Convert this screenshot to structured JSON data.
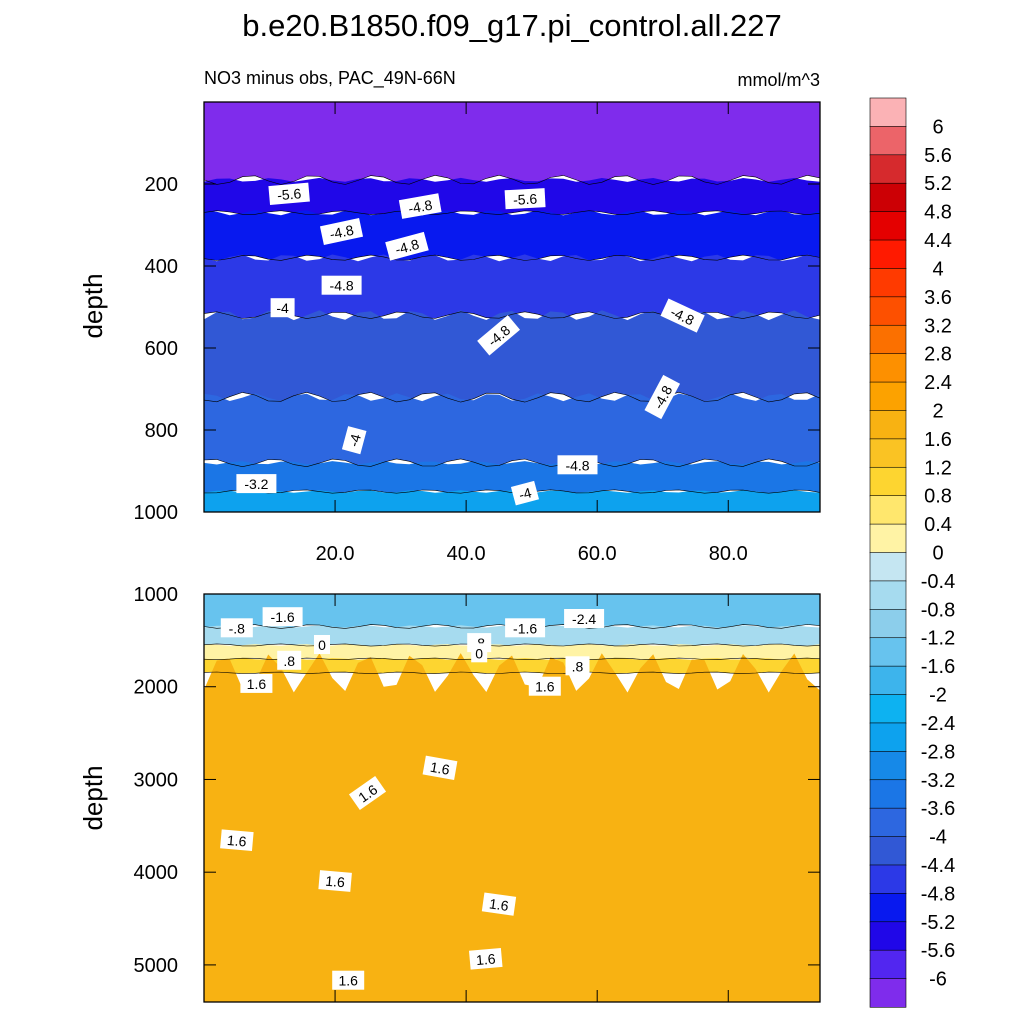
{
  "chart_data": [
    {
      "type": "contour",
      "panel": "upper",
      "title": "b.e20.B1850.f09_g17.pi_control.all.227",
      "left_string": "NO3 minus obs, PAC_49N-66N",
      "right_string": "mmol/m^3",
      "ylabel": "depth",
      "xlabel": "",
      "xlim": [
        0,
        94
      ],
      "ylim": [
        1000,
        0
      ],
      "x_ticks": [
        "20.0",
        "40.0",
        "60.0",
        "80.0"
      ],
      "x_tick_values": [
        20,
        40,
        60,
        80
      ],
      "y_ticks": [
        "200",
        "400",
        "600",
        "800",
        "1000"
      ],
      "y_tick_values": [
        200,
        400,
        600,
        800,
        1000
      ],
      "bands": [
        {
          "from": 0,
          "to": 190,
          "level": -6.2
        },
        {
          "from": 190,
          "to": 270,
          "level": -5.4
        },
        {
          "from": 270,
          "to": 380,
          "level": -5.0
        },
        {
          "from": 380,
          "to": 520,
          "level": -4.6
        },
        {
          "from": 520,
          "to": 720,
          "level": -4.2
        },
        {
          "from": 720,
          "to": 880,
          "level": -3.8
        },
        {
          "from": 880,
          "to": 950,
          "level": -3.4
        },
        {
          "from": 950,
          "to": 1000,
          "level": -2.6
        }
      ],
      "contour_labels": [
        {
          "x": 13,
          "y": 225,
          "text": "-5.6",
          "rot": -5
        },
        {
          "x": 33,
          "y": 255,
          "text": "-4.8",
          "rot": -10
        },
        {
          "x": 49,
          "y": 237,
          "text": "-5.6",
          "rot": -3
        },
        {
          "x": 21,
          "y": 317,
          "text": "-4.8",
          "rot": -12
        },
        {
          "x": 31,
          "y": 353,
          "text": "-4.8",
          "rot": -15
        },
        {
          "x": 21,
          "y": 448,
          "text": "-4.8",
          "rot": 0
        },
        {
          "x": 12,
          "y": 503,
          "text": "-4",
          "rot": 0
        },
        {
          "x": 73,
          "y": 522,
          "text": "-4.8",
          "rot": 25
        },
        {
          "x": 45,
          "y": 570,
          "text": "-4.8",
          "rot": -40
        },
        {
          "x": 70,
          "y": 720,
          "text": "-4.8",
          "rot": -62
        },
        {
          "x": 23,
          "y": 825,
          "text": "-4",
          "rot": -75
        },
        {
          "x": 57,
          "y": 886,
          "text": "-4.8",
          "rot": 0
        },
        {
          "x": 8,
          "y": 932,
          "text": "-3.2",
          "rot": 0
        },
        {
          "x": 49,
          "y": 955,
          "text": "-4",
          "rot": -15
        }
      ]
    },
    {
      "type": "contour",
      "panel": "lower",
      "ylabel": "depth",
      "xlim": [
        0,
        94
      ],
      "ylim": [
        5400,
        1000
      ],
      "y_ticks": [
        "1000",
        "2000",
        "3000",
        "4000",
        "5000"
      ],
      "y_tick_values": [
        1000,
        2000,
        3000,
        4000,
        5000
      ],
      "bands": [
        {
          "from": 1000,
          "to": 1350,
          "level": -1.4
        },
        {
          "from": 1350,
          "to": 1550,
          "level": -0.6
        },
        {
          "from": 1550,
          "to": 1700,
          "level": 0.2
        },
        {
          "from": 1700,
          "to": 1850,
          "level": 1.0
        },
        {
          "from": 1850,
          "to": 5400,
          "level": 1.8
        }
      ],
      "contour_labels": [
        {
          "x": 12,
          "y": 1250,
          "text": "-1.6",
          "rot": 0
        },
        {
          "x": 58,
          "y": 1270,
          "text": "-2.4",
          "rot": 0
        },
        {
          "x": 5,
          "y": 1370,
          "text": "-.8",
          "rot": 0
        },
        {
          "x": 49,
          "y": 1370,
          "text": "-1.6",
          "rot": 0
        },
        {
          "x": 18,
          "y": 1550,
          "text": "0",
          "rot": 0
        },
        {
          "x": 42,
          "y": 1530,
          "text": ".8",
          "rot": 0
        },
        {
          "x": 13,
          "y": 1720,
          "text": ".8",
          "rot": 0
        },
        {
          "x": 42,
          "y": 1640,
          "text": "0",
          "rot": 0
        },
        {
          "x": 57,
          "y": 1780,
          "text": ".8",
          "rot": 0
        },
        {
          "x": 8,
          "y": 1970,
          "text": "1.6",
          "rot": 0
        },
        {
          "x": 52,
          "y": 2000,
          "text": "1.6",
          "rot": 0
        },
        {
          "x": 36,
          "y": 2880,
          "text": "1.6",
          "rot": 10
        },
        {
          "x": 25,
          "y": 3150,
          "text": "1.6",
          "rot": -35
        },
        {
          "x": 5,
          "y": 3660,
          "text": "1.6",
          "rot": 5
        },
        {
          "x": 20,
          "y": 4100,
          "text": "1.6",
          "rot": 5
        },
        {
          "x": 45,
          "y": 4350,
          "text": "1.6",
          "rot": 8
        },
        {
          "x": 43,
          "y": 4940,
          "text": "1.6",
          "rot": -5
        },
        {
          "x": 22,
          "y": 5170,
          "text": "1.6",
          "rot": 0
        }
      ]
    }
  ],
  "colorbar": {
    "labels": [
      "6",
      "5.6",
      "5.2",
      "4.8",
      "4.4",
      "4",
      "3.6",
      "3.2",
      "2.8",
      "2.4",
      "2",
      "1.6",
      "1.2",
      "0.8",
      "0.4",
      "0",
      "-0.4",
      "-0.8",
      "-1.2",
      "-1.6",
      "-2",
      "-2.4",
      "-2.8",
      "-3.2",
      "-3.6",
      "-4",
      "-4.4",
      "-4.8",
      "-5.2",
      "-5.6",
      "-6"
    ],
    "colors": [
      "#fbb2b5",
      "#ec6469",
      "#d62a2d",
      "#cc0005",
      "#e40000",
      "#ff1a00",
      "#ff3a00",
      "#fd5000",
      "#fb7000",
      "#fd9000",
      "#fca200",
      "#f8b212",
      "#fac323",
      "#fdd530",
      "#ffe76d",
      "#fff3a5",
      "#c5e6f2",
      "#a6dbef",
      "#8cceeb",
      "#67c3ee",
      "#3db4ec",
      "#0db2f1",
      "#0da2ee",
      "#1689e8",
      "#1b76e6",
      "#2d67e0",
      "#3158d5",
      "#2c39e7",
      "#0819ef",
      "#2007e8",
      "#5226f0",
      "#7f2cec"
    ]
  }
}
